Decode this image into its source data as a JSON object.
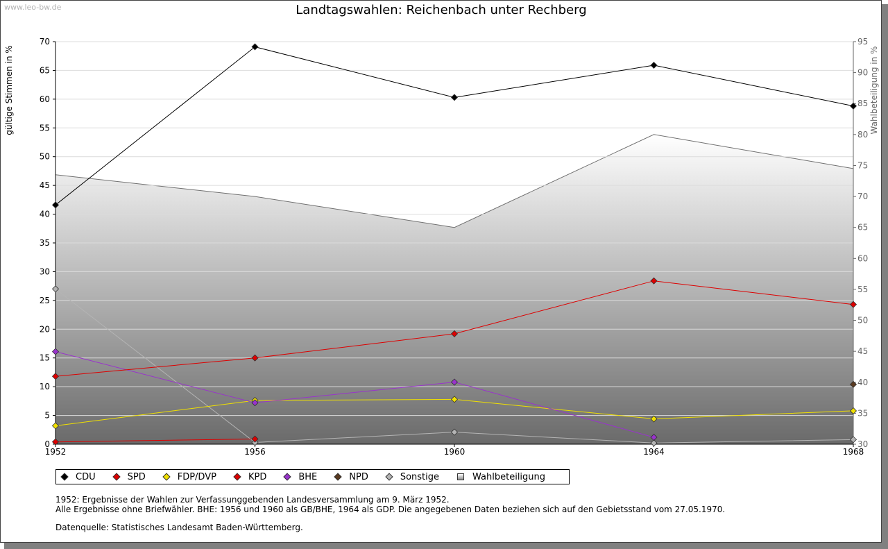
{
  "watermark": "www.leo-bw.de",
  "chart_data": {
    "type": "line",
    "title": "Landtagswahlen: Reichenbach unter Rechberg",
    "ylabel": "gültige Stimmen in %",
    "y2label": "Wahlbeteiligung in %",
    "x": [
      "1952",
      "1956",
      "1960",
      "1964",
      "1968"
    ],
    "ylim": [
      0,
      70
    ],
    "yticks": [
      "0",
      "5",
      "10",
      "15",
      "20",
      "25",
      "30",
      "35",
      "40",
      "45",
      "50",
      "55",
      "60",
      "65",
      "70"
    ],
    "y2lim": [
      30,
      95
    ],
    "y2ticks": [
      "30",
      "35",
      "40",
      "45",
      "50",
      "55",
      "60",
      "65",
      "70",
      "75",
      "80",
      "85",
      "90",
      "95"
    ],
    "grid": true,
    "legend_position": "bottom",
    "series": [
      {
        "name": "CDU",
        "color": "#000000",
        "values": [
          41.6,
          69.1,
          60.3,
          65.9,
          58.8
        ]
      },
      {
        "name": "SPD",
        "color": "#dd0000",
        "values": [
          11.8,
          15.0,
          19.2,
          28.4,
          24.3
        ]
      },
      {
        "name": "FDP/DVP",
        "color": "#f0e000",
        "values": [
          3.2,
          7.6,
          7.8,
          4.4,
          5.8
        ]
      },
      {
        "name": "KPD",
        "color": "#dd0000",
        "values": [
          0.4,
          0.9,
          null,
          null,
          null
        ]
      },
      {
        "name": "BHE",
        "color": "#9933cc",
        "values": [
          16.1,
          7.2,
          10.8,
          1.2,
          null
        ]
      },
      {
        "name": "NPD",
        "color": "#5a3a20",
        "values": [
          null,
          null,
          null,
          null,
          10.4
        ]
      },
      {
        "name": "Sonstige",
        "color": "#b4b4b4",
        "values": [
          27.0,
          0.3,
          2.1,
          0.2,
          0.8
        ]
      }
    ],
    "turnout": {
      "name": "Wahlbeteiligung",
      "axis": "right",
      "values": [
        73.5,
        70.0,
        65.0,
        80.0,
        74.5
      ]
    }
  },
  "notes": {
    "line1": "1952: Ergebnisse der Wahlen zur Verfassunggebenden Landesversammlung am 9. März 1952.",
    "line2": "Alle Ergebnisse ohne Briefwähler. BHE: 1956 und 1960 als GB/BHE, 1964 als GDP. Die angegebenen Daten beziehen sich auf den Gebietsstand vom 27.05.1970.",
    "source": "Datenquelle: Statistisches Landesamt Baden-Württemberg."
  }
}
